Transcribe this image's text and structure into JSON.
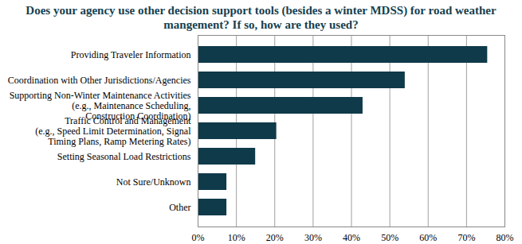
{
  "chart_data": {
    "type": "bar",
    "orientation": "horizontal",
    "title": "Does your agency use other decision support tools (besides a winter MDSS) for road weather mangement? If so, how are they used?",
    "categories": [
      "Providing Traveler Information",
      "Coordination with Other Jurisdictions/Agencies",
      "Supporting Non-Winter Maintenance Activities\n(e.g., Maintenance Scheduling,\nConstruction Coordination)",
      "Traffic Control and Management\n(e.g., Speed Limit Determination, Signal\nTiming Plans, Ramp Metering Rates)",
      "Setting Seasonal Load Restrictions",
      "Not Sure/Unknown",
      "Other"
    ],
    "values": [
      75.5,
      54,
      43,
      20.5,
      15,
      7.5,
      7.5
    ],
    "color": "#0f3a4a",
    "xlim": [
      0,
      80
    ],
    "xticks": [
      {
        "value": 0,
        "label": "0%"
      },
      {
        "value": 10,
        "label": "10%"
      },
      {
        "value": 20,
        "label": "20%"
      },
      {
        "value": 30,
        "label": "30%"
      },
      {
        "value": 40,
        "label": "40%"
      },
      {
        "value": 50,
        "label": "50%"
      },
      {
        "value": 60,
        "label": "60%"
      },
      {
        "value": 70,
        "label": "70%"
      },
      {
        "value": 80,
        "label": "80%"
      }
    ],
    "grid": true
  }
}
